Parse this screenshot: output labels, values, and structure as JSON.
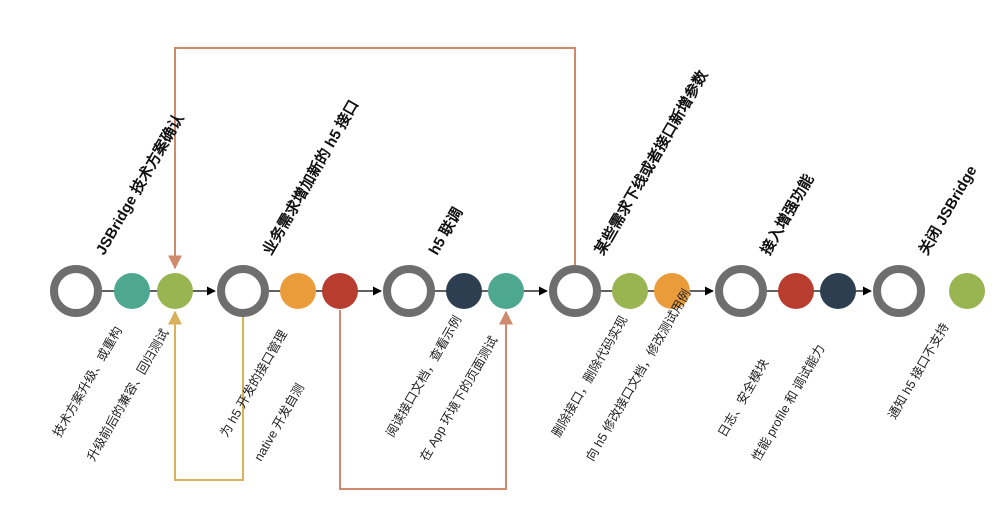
{
  "colors": {
    "ring": "#6e6e6e",
    "arrow": "#000000",
    "loop_orange": "#cf8a6d",
    "loop_gold": "#d9b15b",
    "teal": "#4ea890",
    "olive": "#98b552",
    "orange": "#eb9c3a",
    "red": "#b83d2f",
    "navy": "#2c3e50"
  },
  "stages": [
    {
      "title": "JSBridge 技术方案确认",
      "dots": [
        "teal",
        "olive"
      ],
      "notes": [
        "技术方案升级、或重构",
        "升级前后的兼容、回归测试"
      ]
    },
    {
      "title": "业务需求增加新的 h5 接口",
      "dots": [
        "orange",
        "red"
      ],
      "notes": [
        "为 h5 开发的接口管理",
        "native 开发自测"
      ]
    },
    {
      "title": "h5 联调",
      "dots": [
        "navy",
        "teal"
      ],
      "notes": [
        "阅读接口文档，查看示例",
        "在 App 环境下的页面测试"
      ]
    },
    {
      "title": "某些需求下线或者接口新增参数",
      "dots": [
        "olive",
        "orange"
      ],
      "notes": [
        "删除接口，删除代码实现",
        "向 h5 修改接口文档，修改测试用例"
      ]
    },
    {
      "title": "接入增强功能",
      "dots": [
        "red",
        "navy"
      ],
      "notes": [
        "日志、安全模块",
        "性能 profile 和 调试能力"
      ]
    },
    {
      "title": "关闭 JSBridge",
      "dots": [
        "olive"
      ],
      "notes": [
        "通知 h5 接口不支持"
      ]
    }
  ]
}
